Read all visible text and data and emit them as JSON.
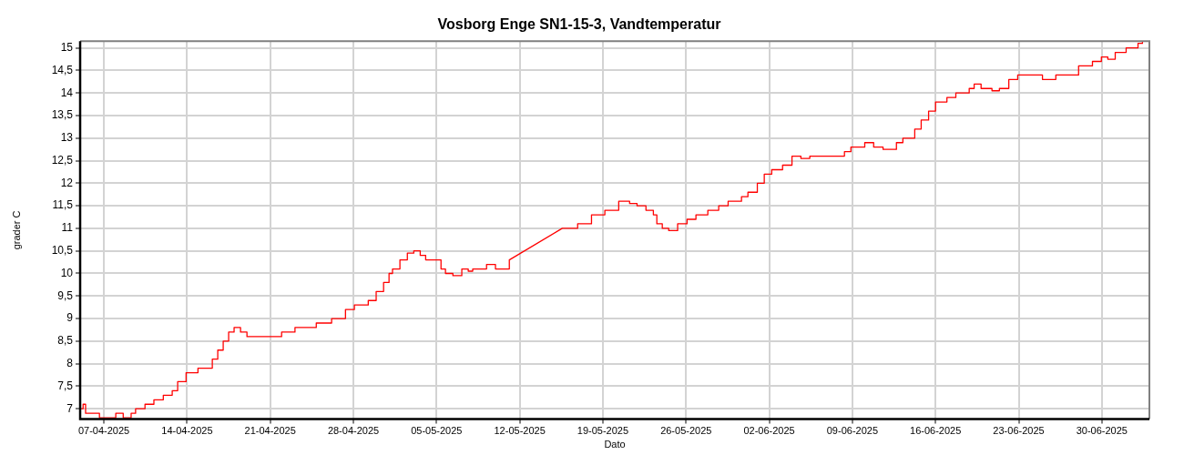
{
  "chart_data": {
    "type": "line",
    "title": "Vosborg Enge SN1-15-3, Vandtemperatur",
    "xlabel": "Dato",
    "ylabel": "grader C",
    "xlim": [
      "2025-04-05",
      "2025-07-04"
    ],
    "xticks": [
      {
        "value": "2025-04-07",
        "label": "07-04-2025"
      },
      {
        "value": "2025-04-14",
        "label": "14-04-2025"
      },
      {
        "value": "2025-04-21",
        "label": "21-04-2025"
      },
      {
        "value": "2025-04-28",
        "label": "28-04-2025"
      },
      {
        "value": "2025-05-05",
        "label": "05-05-2025"
      },
      {
        "value": "2025-05-12",
        "label": "12-05-2025"
      },
      {
        "value": "2025-05-19",
        "label": "19-05-2025"
      },
      {
        "value": "2025-05-26",
        "label": "26-05-2025"
      },
      {
        "value": "2025-06-02",
        "label": "02-06-2025"
      },
      {
        "value": "2025-06-09",
        "label": "09-06-2025"
      },
      {
        "value": "2025-06-16",
        "label": "16-06-2025"
      },
      {
        "value": "2025-06-23",
        "label": "23-06-2025"
      },
      {
        "value": "2025-06-30",
        "label": "30-06-2025"
      }
    ],
    "ylim": [
      6.77,
      15.15
    ],
    "yticks": [
      7,
      {
        "value": 7.5,
        "label": "7,5"
      },
      8,
      {
        "value": 8.5,
        "label": "8,5"
      },
      9,
      {
        "value": 9.5,
        "label": "9,5"
      },
      10,
      {
        "value": 10.5,
        "label": "10,5"
      },
      11,
      {
        "value": 11.5,
        "label": "11,5"
      },
      12,
      {
        "value": 12.5,
        "label": "12,5"
      },
      13,
      {
        "value": 13.5,
        "label": "13,5"
      },
      14,
      {
        "value": 14.5,
        "label": "14,5"
      },
      15
    ],
    "grid": true,
    "legend": false,
    "marker": "none",
    "line_style": "solid",
    "series": [
      {
        "color": "#ff0000",
        "x": [
          "2025-04-05T02:00",
          "2025-04-05T06:00",
          "2025-04-05T06:00",
          "2025-04-05T11:00",
          "2025-04-05T11:00",
          "2025-04-06T15:00",
          "2025-04-06T15:00",
          "2025-04-08T00:00",
          "2025-04-08T00:00",
          "2025-04-08T15:00",
          "2025-04-08T15:00",
          "2025-04-09T07:00",
          "2025-04-09T07:00",
          "2025-04-09T16:00",
          "2025-04-09T16:00",
          "2025-04-10T11:00",
          "2025-04-10T11:00",
          "2025-04-11T05:00",
          "2025-04-11T05:00",
          "2025-04-12T00:00",
          "2025-04-12T00:00",
          "2025-04-12T18:00",
          "2025-04-12T18:00",
          "2025-04-13T05:00",
          "2025-04-13T05:00",
          "2025-04-13T22:00",
          "2025-04-13T22:00",
          "2025-04-14T22:00",
          "2025-04-14T22:00",
          "2025-04-16T03:00",
          "2025-04-16T03:00",
          "2025-04-16T14:00",
          "2025-04-16T14:00",
          "2025-04-17T01:00",
          "2025-04-17T01:00",
          "2025-04-17T12:00",
          "2025-04-17T12:00",
          "2025-04-17T23:00",
          "2025-04-17T23:00",
          "2025-04-18T12:00",
          "2025-04-18T12:00",
          "2025-04-19T01:00",
          "2025-04-19T01:00",
          "2025-04-21T23:00",
          "2025-04-21T23:00",
          "2025-04-23T02:00",
          "2025-04-23T02:00",
          "2025-04-24T21:00",
          "2025-04-24T21:00",
          "2025-04-26T04:00",
          "2025-04-26T04:00",
          "2025-04-27T08:00",
          "2025-04-27T08:00",
          "2025-04-28T02:00",
          "2025-04-28T02:00",
          "2025-04-29T06:00",
          "2025-04-29T06:00",
          "2025-04-29T22:00",
          "2025-04-29T22:00",
          "2025-04-30T13:00",
          "2025-04-30T13:00",
          "2025-05-01T00:00",
          "2025-05-01T00:00",
          "2025-05-01T07:00",
          "2025-05-01T07:00",
          "2025-05-01T22:00",
          "2025-05-01T22:00",
          "2025-05-02T13:00",
          "2025-05-02T13:00",
          "2025-05-03T02:00",
          "2025-05-03T02:00",
          "2025-05-03T15:00",
          "2025-05-03T15:00",
          "2025-05-04T02:00",
          "2025-05-04T02:00",
          "2025-05-05T09:00",
          "2025-05-05T09:00",
          "2025-05-05T18:00",
          "2025-05-05T18:00",
          "2025-05-06T09:00",
          "2025-05-06T09:00",
          "2025-05-07T03:00",
          "2025-05-07T03:00",
          "2025-05-07T16:00",
          "2025-05-07T16:00",
          "2025-05-08T01:00",
          "2025-05-08T01:00",
          "2025-05-09T05:00",
          "2025-05-09T05:00",
          "2025-05-09T23:00",
          "2025-05-09T23:00",
          "2025-05-11T03:00",
          "2025-05-11T03:00",
          "2025-05-15T14:00",
          "2025-05-16T21:00",
          "2025-05-16T21:00",
          "2025-05-18T01:00",
          "2025-05-18T01:00",
          "2025-05-19T04:00",
          "2025-05-19T04:00",
          "2025-05-20T08:00",
          "2025-05-20T08:00",
          "2025-05-21T06:00",
          "2025-05-21T06:00",
          "2025-05-21T21:00",
          "2025-05-21T21:00",
          "2025-05-22T15:00",
          "2025-05-22T15:00",
          "2025-05-23T06:00",
          "2025-05-23T06:00",
          "2025-05-23T13:00",
          "2025-05-23T13:00",
          "2025-05-24T00:00",
          "2025-05-24T00:00",
          "2025-05-24T13:00",
          "2025-05-24T13:00",
          "2025-05-25T07:00",
          "2025-05-25T07:00",
          "2025-05-26T02:00",
          "2025-05-26T02:00",
          "2025-05-26T20:00",
          "2025-05-26T20:00",
          "2025-05-27T20:00",
          "2025-05-27T20:00",
          "2025-05-28T18:00",
          "2025-05-28T18:00",
          "2025-05-29T13:00",
          "2025-05-29T13:00",
          "2025-05-30T16:00",
          "2025-05-30T16:00",
          "2025-05-31T05:00",
          "2025-05-31T05:00",
          "2025-06-01T00:00",
          "2025-06-01T00:00",
          "2025-06-01T14:00",
          "2025-06-01T14:00",
          "2025-06-02T05:00",
          "2025-06-02T05:00",
          "2025-06-03T03:00",
          "2025-06-03T03:00",
          "2025-06-03T22:00",
          "2025-06-03T22:00",
          "2025-06-04T16:00",
          "2025-06-04T16:00",
          "2025-06-05T10:00",
          "2025-06-05T10:00",
          "2025-06-08T08:00",
          "2025-06-08T08:00",
          "2025-06-08T21:00",
          "2025-06-08T21:00",
          "2025-06-10T01:00",
          "2025-06-10T01:00",
          "2025-06-10T19:00",
          "2025-06-10T19:00",
          "2025-06-11T14:00",
          "2025-06-11T14:00",
          "2025-06-12T17:00",
          "2025-06-12T17:00",
          "2025-06-13T06:00",
          "2025-06-13T06:00",
          "2025-06-14T06:00",
          "2025-06-14T06:00",
          "2025-06-14T19:00",
          "2025-06-14T19:00",
          "2025-06-15T10:00",
          "2025-06-15T10:00",
          "2025-06-16T00:00",
          "2025-06-16T00:00",
          "2025-06-16T23:00",
          "2025-06-16T23:00",
          "2025-06-17T17:00",
          "2025-06-17T17:00",
          "2025-06-18T20:00",
          "2025-06-18T20:00",
          "2025-06-19T06:00",
          "2025-06-19T06:00",
          "2025-06-19T20:00",
          "2025-06-19T20:00",
          "2025-06-20T18:00",
          "2025-06-20T18:00",
          "2025-06-21T09:00",
          "2025-06-21T09:00",
          "2025-06-22T04:00",
          "2025-06-22T04:00",
          "2025-06-22T22:00",
          "2025-06-22T22:00",
          "2025-06-25T00:00",
          "2025-06-25T00:00",
          "2025-06-26T03:00",
          "2025-06-26T03:00",
          "2025-06-28T01:00",
          "2025-06-28T01:00",
          "2025-06-29T05:00",
          "2025-06-29T05:00",
          "2025-06-29T23:00",
          "2025-06-29T23:00",
          "2025-06-30T12:00",
          "2025-06-30T12:00",
          "2025-07-01T03:00",
          "2025-07-01T03:00",
          "2025-07-02T01:00",
          "2025-07-02T01:00",
          "2025-07-03T01:00",
          "2025-07-03T01:00",
          "2025-07-03T10:00",
          "2025-07-03T10:00"
        ],
        "values": [
          7.0,
          7.0,
          7.1,
          7.1,
          6.9,
          6.9,
          6.8,
          6.8,
          6.9,
          6.9,
          6.8,
          6.8,
          6.9,
          6.9,
          7.0,
          7.0,
          7.1,
          7.1,
          7.2,
          7.2,
          7.3,
          7.3,
          7.4,
          7.4,
          7.6,
          7.6,
          7.8,
          7.8,
          7.9,
          7.9,
          8.1,
          8.1,
          8.3,
          8.3,
          8.5,
          8.5,
          8.7,
          8.7,
          8.8,
          8.8,
          8.7,
          8.7,
          8.6,
          8.6,
          8.7,
          8.7,
          8.8,
          8.8,
          8.9,
          8.9,
          9.0,
          9.0,
          9.2,
          9.2,
          9.3,
          9.3,
          9.4,
          9.4,
          9.6,
          9.6,
          9.8,
          9.8,
          10.0,
          10.0,
          10.1,
          10.1,
          10.3,
          10.3,
          10.45,
          10.45,
          10.5,
          10.5,
          10.4,
          10.4,
          10.3,
          10.3,
          10.1,
          10.1,
          10.0,
          10.0,
          9.95,
          9.95,
          10.1,
          10.1,
          10.05,
          10.05,
          10.1,
          10.1,
          10.2,
          10.2,
          10.1,
          10.1,
          10.3,
          11.0,
          11.0,
          11.1,
          11.1,
          11.3,
          11.3,
          11.4,
          11.4,
          11.6,
          11.6,
          11.55,
          11.55,
          11.5,
          11.5,
          11.4,
          11.4,
          11.3,
          11.3,
          11.1,
          11.1,
          11.0,
          11.0,
          10.95,
          10.95,
          11.1,
          11.1,
          11.2,
          11.2,
          11.3,
          11.3,
          11.4,
          11.4,
          11.5,
          11.5,
          11.6,
          11.6,
          11.7,
          11.7,
          11.8,
          11.8,
          12.0,
          12.0,
          12.2,
          12.2,
          12.3,
          12.3,
          12.4,
          12.4,
          12.6,
          12.6,
          12.55,
          12.55,
          12.6,
          12.6,
          12.7,
          12.7,
          12.8,
          12.8,
          12.9,
          12.9,
          12.8,
          12.8,
          12.75,
          12.75,
          12.9,
          12.9,
          13.0,
          13.0,
          13.2,
          13.2,
          13.4,
          13.4,
          13.6,
          13.6,
          13.8,
          13.8,
          13.9,
          13.9,
          14.0,
          14.0,
          14.1,
          14.1,
          14.2,
          14.2,
          14.1,
          14.1,
          14.05,
          14.05,
          14.1,
          14.1,
          14.3,
          14.3,
          14.4,
          14.4,
          14.3,
          14.3,
          14.4,
          14.4,
          14.6,
          14.6,
          14.7,
          14.7,
          14.8,
          14.8,
          14.75,
          14.75,
          14.9,
          14.9,
          15.0,
          15.0,
          15.1,
          15.1,
          15.15
        ]
      }
    ]
  }
}
